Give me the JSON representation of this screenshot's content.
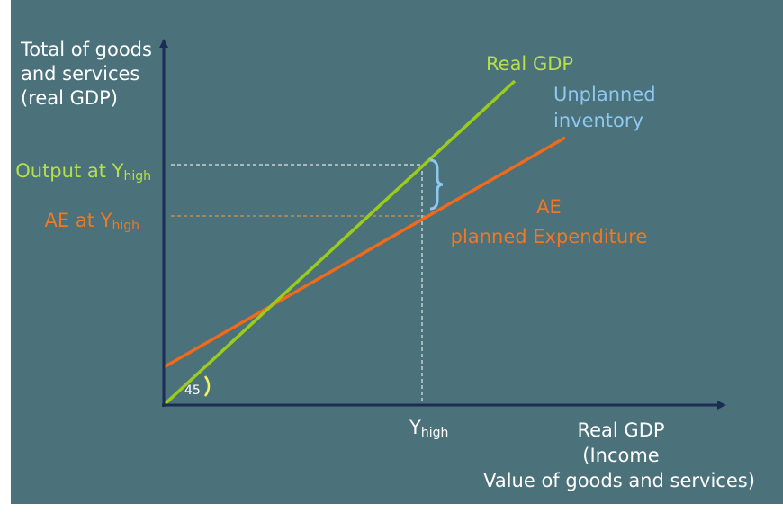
{
  "y_axis_label": [
    "Total of goods",
    "and services",
    "(real GDP)"
  ],
  "x_axis_label": [
    "Real GDP",
    "(Income",
    "Value of goods and services)"
  ],
  "line_labels": {
    "real_gdp": "Real GDP",
    "ae": [
      "AE",
      "planned Expenditure"
    ]
  },
  "annotation": [
    "Unplanned",
    "inventory"
  ],
  "y_markers": [
    {
      "text": "Output at Y",
      "sub": "high"
    },
    {
      "text": "AE at Y",
      "sub": "high"
    }
  ],
  "x_marker": {
    "text": "Y",
    "sub": "high"
  },
  "angle_label": "45"
}
